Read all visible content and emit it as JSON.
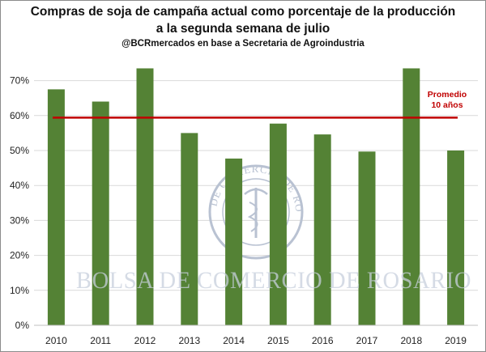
{
  "chart_data": {
    "type": "bar",
    "title_lines": [
      "Compras de soja de campaña actual como porcentaje de la producción",
      "a la segunda semana de julio"
    ],
    "subtitle": "@BCRmercados en base a Secretaria de Agroindustria",
    "categories": [
      "2010",
      "2011",
      "2012",
      "2013",
      "2014",
      "2015",
      "2016",
      "2017",
      "2018",
      "2019"
    ],
    "values": [
      67.5,
      64.0,
      73.5,
      55.0,
      47.7,
      57.7,
      54.6,
      49.7,
      73.5,
      50.0
    ],
    "ylim": [
      0,
      75
    ],
    "yticks": [
      0,
      10,
      20,
      30,
      40,
      50,
      60,
      70
    ],
    "ytick_labels": [
      "0%",
      "10%",
      "20%",
      "30%",
      "40%",
      "50%",
      "60%",
      "70%"
    ],
    "reference_line": {
      "value": 59.4,
      "label_lines": [
        "Promedio",
        "10 años"
      ],
      "color": "#c00000"
    },
    "bar_color": "#548235",
    "grid": true,
    "watermark": {
      "text": "BOLSA DE COMERCIO DE ROSARIO",
      "seal_text": "BOLSA DE COMERCIO DE ROSARIO"
    }
  }
}
